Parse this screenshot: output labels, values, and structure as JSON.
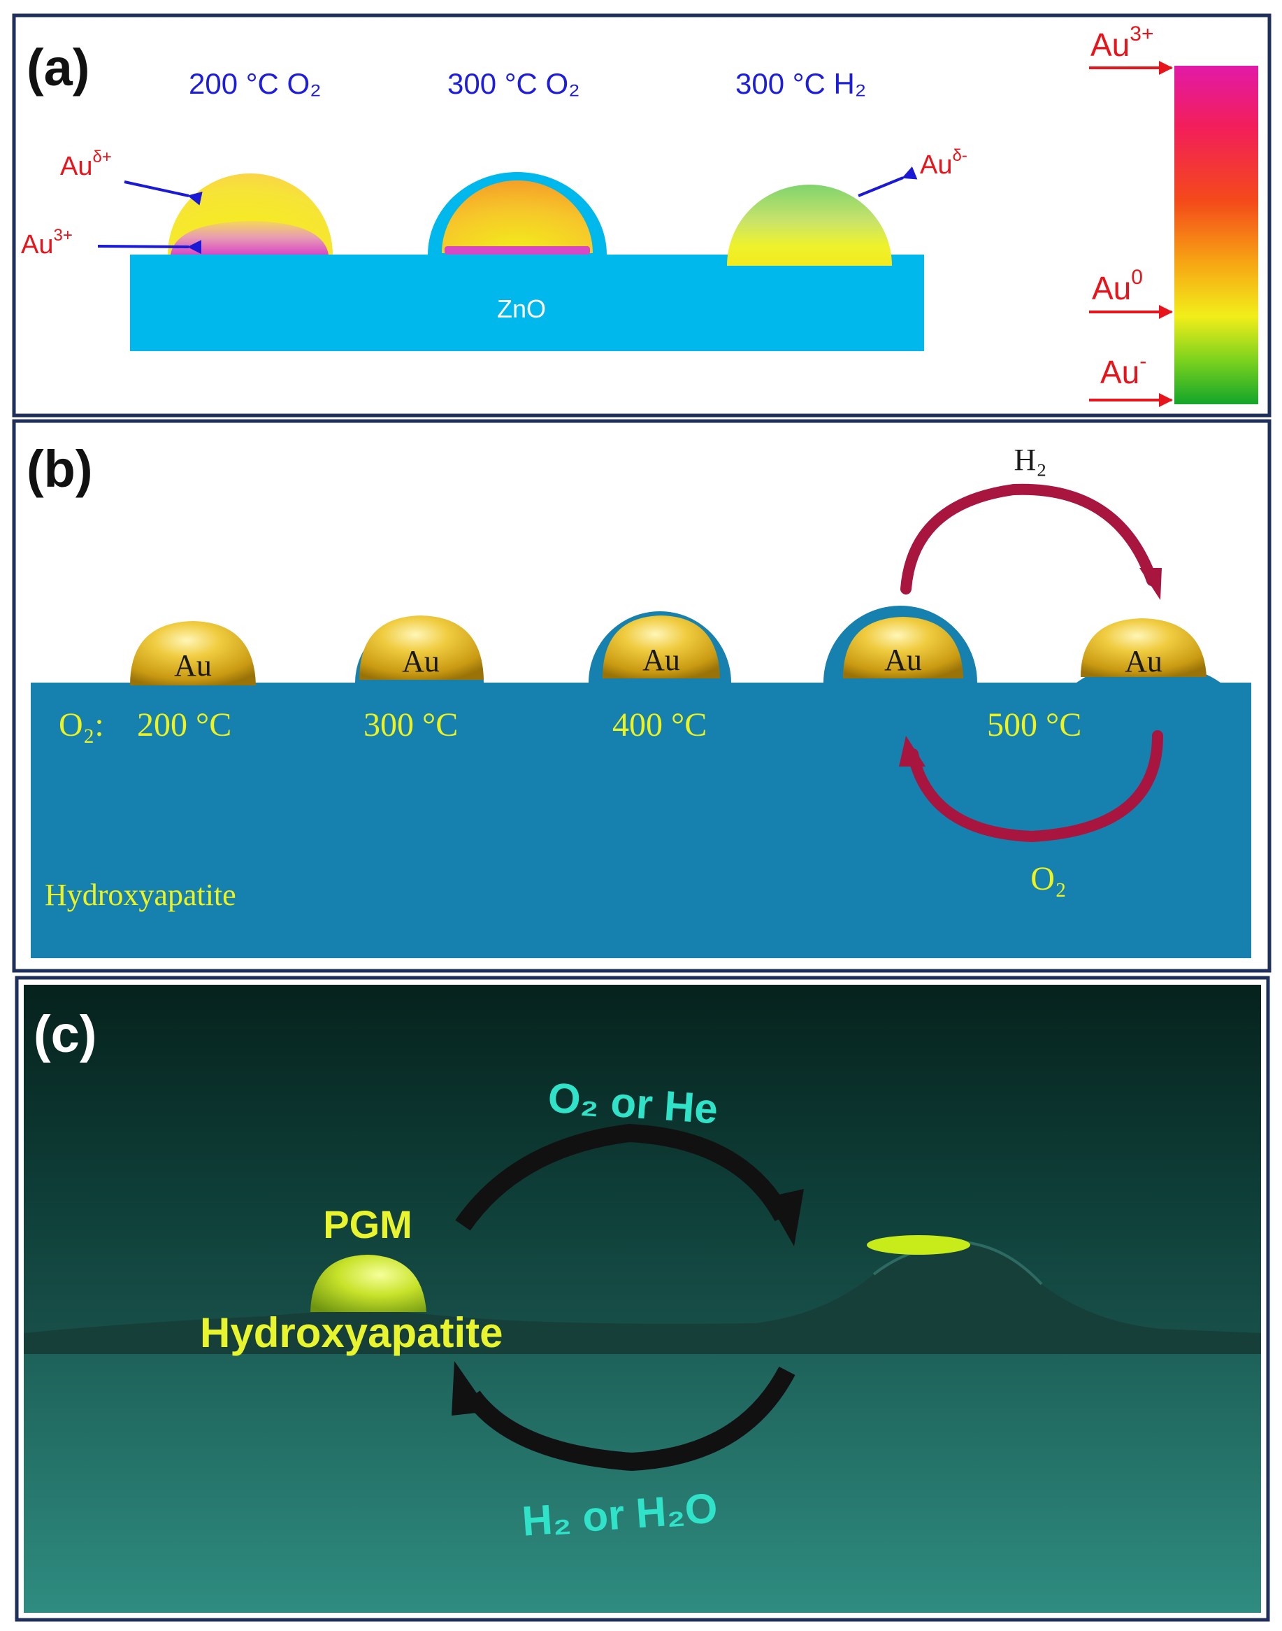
{
  "panel_a": {
    "label": "(a)",
    "conditions": [
      "200 °C O₂",
      "300 °C O₂",
      "300 °C H₂"
    ],
    "left_labels": {
      "au_delta_plus": {
        "base": "Au",
        "sup": "δ+"
      },
      "au_3_plus": {
        "base": "Au",
        "sup": "3+"
      }
    },
    "right_label": {
      "base": "Au",
      "sup": "δ-"
    },
    "support": "ZnO",
    "scale": [
      {
        "base": "Au",
        "sup": "3+"
      },
      {
        "base": "Au",
        "sup": "0"
      },
      {
        "base": "Au",
        "sup": "-"
      }
    ],
    "colors": {
      "support": "#00b8ec",
      "arrow": "#1a1ad6",
      "red_text": "#e8141b",
      "blue_text": "#1d1de0"
    }
  },
  "panel_b": {
    "label": "(b)",
    "particle": "Au",
    "gas_prefix": "O₂:",
    "temps": [
      "200 °C",
      "300 °C",
      "400 °C",
      "500 °C"
    ],
    "top_gas": "H₂",
    "bottom_gas": "O₂",
    "support": "Hydroxyapatite",
    "colors": {
      "support": "#1681ae",
      "text": "#eef21e",
      "arrow": "#a8153f",
      "gold": "#e3b92a"
    }
  },
  "panel_c": {
    "label": "(c)",
    "particle": "PGM",
    "support": "Hydroxyapatite",
    "top_gas": "O₂ or He",
    "bottom_gas": "H₂ or H₂O",
    "colors": {
      "background": "#1f6e66",
      "text": "#e8f52e",
      "gas_text": "#2fe2c8",
      "arrow": "#111111"
    }
  }
}
